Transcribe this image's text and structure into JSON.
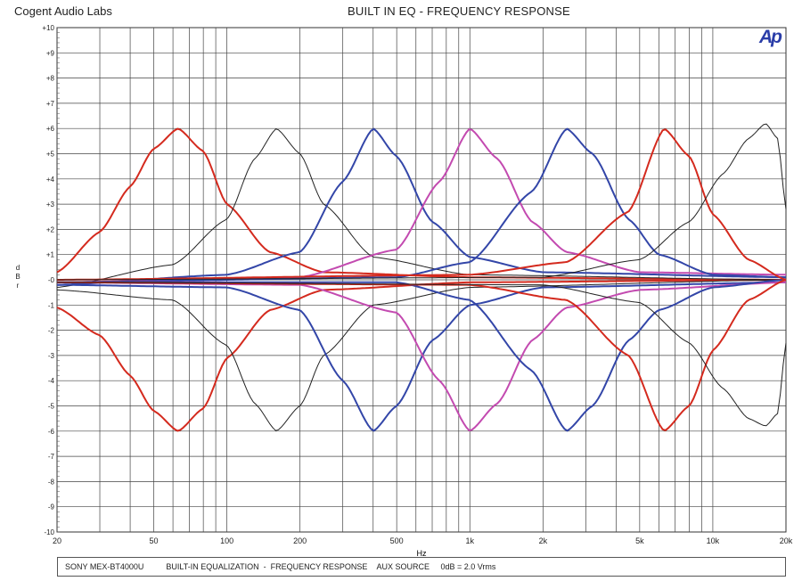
{
  "header": {
    "company": "Cogent Audio Labs",
    "title": "BUILT IN EQ  -  FREQUENCY RESPONSE",
    "logo": "Ap"
  },
  "footer": {
    "model": "SONY MEX-BT4000U",
    "description": "BUILT-IN EQUALIZATION  -  FREQUENCY RESPONSE",
    "source": "AUX SOURCE",
    "reference": "0dB = 2.0 Vrms"
  },
  "chart_data": {
    "type": "line",
    "title": "BUILT IN EQ  -  FREQUENCY RESPONSE",
    "xlabel": "Hz",
    "ylabel": "dBr",
    "xscale": "log",
    "xlim": [
      20,
      20000
    ],
    "ylim": [
      -10,
      10
    ],
    "grid": true,
    "x_tick_labels": [
      "20",
      "50",
      "100",
      "200",
      "500",
      "1k",
      "2k",
      "5k",
      "10k",
      "20k"
    ],
    "x_tick_values": [
      20,
      50,
      100,
      200,
      500,
      1000,
      2000,
      5000,
      10000,
      20000
    ],
    "y_tick_labels": [
      "+10",
      "+9",
      "+8",
      "+7",
      "+6",
      "+5",
      "+4",
      "+3",
      "+2",
      "+1",
      "-0",
      "-1",
      "-2",
      "-3",
      "-4",
      "-5",
      "-6",
      "-7",
      "-8",
      "-9",
      "-10"
    ],
    "y_tick_values": [
      10,
      9,
      8,
      7,
      6,
      5,
      4,
      3,
      2,
      1,
      0,
      -1,
      -2,
      -3,
      -4,
      -5,
      -6,
      -7,
      -8,
      -9,
      -10
    ],
    "colors": {
      "red": "#d42a1e",
      "black": "#222222",
      "blue": "#3346a8",
      "magenta": "#c34ab0"
    },
    "series": [
      {
        "color": "red",
        "center_hz": 63,
        "peak_db": 6,
        "points": [
          [
            20,
            0.3
          ],
          [
            30,
            1.9
          ],
          [
            40,
            3.7
          ],
          [
            50,
            5.2
          ],
          [
            63,
            6.0
          ],
          [
            80,
            5.1
          ],
          [
            100,
            3.0
          ],
          [
            150,
            1.1
          ],
          [
            250,
            0.3
          ],
          [
            1000,
            0.1
          ],
          [
            20000,
            0.0
          ]
        ]
      },
      {
        "color": "red",
        "center_hz": 63,
        "peak_db": -6,
        "points": [
          [
            20,
            -1.1
          ],
          [
            30,
            -2.2
          ],
          [
            40,
            -3.8
          ],
          [
            50,
            -5.2
          ],
          [
            63,
            -6.0
          ],
          [
            80,
            -5.1
          ],
          [
            100,
            -3.1
          ],
          [
            150,
            -1.2
          ],
          [
            250,
            -0.4
          ],
          [
            1000,
            -0.1
          ],
          [
            20000,
            0.0
          ]
        ]
      },
      {
        "color": "black",
        "center_hz": 160,
        "peak_db": 6,
        "points": [
          [
            20,
            -0.3
          ],
          [
            60,
            0.6
          ],
          [
            100,
            2.4
          ],
          [
            130,
            4.8
          ],
          [
            160,
            6.0
          ],
          [
            200,
            5.0
          ],
          [
            250,
            3.0
          ],
          [
            400,
            0.9
          ],
          [
            1000,
            0.2
          ],
          [
            20000,
            0.0
          ]
        ]
      },
      {
        "color": "black",
        "center_hz": 160,
        "peak_db": -6,
        "points": [
          [
            20,
            -0.4
          ],
          [
            60,
            -0.8
          ],
          [
            100,
            -2.6
          ],
          [
            130,
            -4.9
          ],
          [
            160,
            -6.0
          ],
          [
            200,
            -5.0
          ],
          [
            250,
            -3.0
          ],
          [
            400,
            -1.0
          ],
          [
            1000,
            -0.3
          ],
          [
            20000,
            0.0
          ]
        ]
      },
      {
        "color": "blue",
        "center_hz": 400,
        "peak_db": 6,
        "points": [
          [
            20,
            -0.2
          ],
          [
            100,
            0.2
          ],
          [
            200,
            1.1
          ],
          [
            300,
            3.9
          ],
          [
            400,
            6.0
          ],
          [
            500,
            4.9
          ],
          [
            700,
            2.3
          ],
          [
            1000,
            0.9
          ],
          [
            2000,
            0.3
          ],
          [
            20000,
            0.1
          ]
        ]
      },
      {
        "color": "blue",
        "center_hz": 400,
        "peak_db": -6,
        "points": [
          [
            20,
            -0.2
          ],
          [
            100,
            -0.3
          ],
          [
            200,
            -1.2
          ],
          [
            300,
            -4.0
          ],
          [
            400,
            -6.0
          ],
          [
            500,
            -5.0
          ],
          [
            700,
            -2.4
          ],
          [
            1000,
            -1.0
          ],
          [
            2000,
            -0.3
          ],
          [
            20000,
            -0.1
          ]
        ]
      },
      {
        "color": "magenta",
        "center_hz": 1000,
        "peak_db": 6,
        "points": [
          [
            20,
            -0.1
          ],
          [
            200,
            0.1
          ],
          [
            500,
            1.2
          ],
          [
            750,
            3.9
          ],
          [
            1000,
            6.0
          ],
          [
            1300,
            4.8
          ],
          [
            1800,
            2.3
          ],
          [
            2500,
            1.1
          ],
          [
            5000,
            0.3
          ],
          [
            20000,
            0.2
          ]
        ]
      },
      {
        "color": "magenta",
        "center_hz": 1000,
        "peak_db": -6,
        "points": [
          [
            20,
            -0.1
          ],
          [
            200,
            -0.2
          ],
          [
            500,
            -1.3
          ],
          [
            750,
            -4.0
          ],
          [
            1000,
            -6.0
          ],
          [
            1300,
            -4.9
          ],
          [
            1800,
            -2.4
          ],
          [
            2500,
            -1.1
          ],
          [
            5000,
            -0.4
          ],
          [
            20000,
            -0.1
          ]
        ]
      },
      {
        "color": "blue",
        "center_hz": 2500,
        "peak_db": 6,
        "points": [
          [
            20,
            -0.1
          ],
          [
            500,
            0.1
          ],
          [
            1000,
            0.7
          ],
          [
            1800,
            3.5
          ],
          [
            2500,
            6.0
          ],
          [
            3200,
            5.0
          ],
          [
            4500,
            2.4
          ],
          [
            6000,
            1.0
          ],
          [
            10000,
            0.2
          ],
          [
            20000,
            0.1
          ]
        ]
      },
      {
        "color": "blue",
        "center_hz": 2500,
        "peak_db": -6,
        "points": [
          [
            20,
            -0.1
          ],
          [
            500,
            -0.1
          ],
          [
            1000,
            -0.8
          ],
          [
            1800,
            -3.6
          ],
          [
            2500,
            -6.0
          ],
          [
            3200,
            -5.0
          ],
          [
            4500,
            -2.4
          ],
          [
            6000,
            -1.2
          ],
          [
            10000,
            -0.3
          ],
          [
            20000,
            0.0
          ]
        ]
      },
      {
        "color": "red",
        "center_hz": 6300,
        "peak_db": 6,
        "points": [
          [
            20,
            0.0
          ],
          [
            1000,
            0.2
          ],
          [
            2500,
            0.7
          ],
          [
            4500,
            2.7
          ],
          [
            6300,
            6.0
          ],
          [
            8000,
            4.9
          ],
          [
            10000,
            2.6
          ],
          [
            14000,
            0.8
          ],
          [
            20000,
            0.0
          ]
        ]
      },
      {
        "color": "red",
        "center_hz": 6300,
        "peak_db": -6,
        "points": [
          [
            20,
            -0.1
          ],
          [
            1000,
            -0.2
          ],
          [
            2500,
            -0.8
          ],
          [
            4500,
            -3.0
          ],
          [
            6300,
            -6.0
          ],
          [
            8000,
            -5.0
          ],
          [
            10000,
            -2.8
          ],
          [
            14000,
            -0.8
          ],
          [
            20000,
            0.0
          ]
        ]
      },
      {
        "color": "black",
        "center_hz": 16000,
        "peak_db": 6,
        "points": [
          [
            20,
            0.0
          ],
          [
            2000,
            0.1
          ],
          [
            5000,
            0.8
          ],
          [
            8000,
            2.3
          ],
          [
            11000,
            4.2
          ],
          [
            14000,
            5.6
          ],
          [
            16500,
            6.2
          ],
          [
            18500,
            5.6
          ],
          [
            20000,
            2.8
          ]
        ]
      },
      {
        "color": "black",
        "center_hz": 16000,
        "peak_db": -6,
        "points": [
          [
            20,
            -0.1
          ],
          [
            2000,
            -0.2
          ],
          [
            5000,
            -0.9
          ],
          [
            8000,
            -2.5
          ],
          [
            11000,
            -4.3
          ],
          [
            14000,
            -5.5
          ],
          [
            16500,
            -5.8
          ],
          [
            18500,
            -5.3
          ],
          [
            20000,
            -2.5
          ]
        ]
      }
    ]
  }
}
